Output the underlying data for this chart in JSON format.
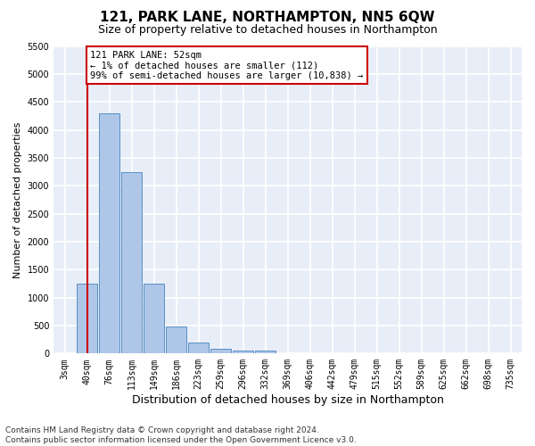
{
  "title": "121, PARK LANE, NORTHAMPTON, NN5 6QW",
  "subtitle": "Size of property relative to detached houses in Northampton",
  "xlabel": "Distribution of detached houses by size in Northampton",
  "ylabel": "Number of detached properties",
  "categories": [
    "3sqm",
    "40sqm",
    "76sqm",
    "113sqm",
    "149sqm",
    "186sqm",
    "223sqm",
    "259sqm",
    "296sqm",
    "332sqm",
    "369sqm",
    "406sqm",
    "442sqm",
    "479sqm",
    "515sqm",
    "552sqm",
    "589sqm",
    "625sqm",
    "662sqm",
    "698sqm",
    "735sqm"
  ],
  "values": [
    0,
    1250,
    4300,
    3250,
    1250,
    480,
    200,
    90,
    60,
    50,
    0,
    0,
    0,
    0,
    0,
    0,
    0,
    0,
    0,
    0,
    0
  ],
  "bar_color": "#aec6e8",
  "bar_edge_color": "#5a8fc2",
  "vline_x": 1,
  "vline_color": "#cc0000",
  "annotation_text": "121 PARK LANE: 52sqm\n← 1% of detached houses are smaller (112)\n99% of semi-detached houses are larger (10,838) →",
  "annotation_box_color": "white",
  "annotation_box_edge": "#cc0000",
  "ylim": [
    0,
    5500
  ],
  "yticks": [
    0,
    500,
    1000,
    1500,
    2000,
    2500,
    3000,
    3500,
    4000,
    4500,
    5000,
    5500
  ],
  "footer_line1": "Contains HM Land Registry data © Crown copyright and database right 2024.",
  "footer_line2": "Contains public sector information licensed under the Open Government Licence v3.0.",
  "title_fontsize": 11,
  "subtitle_fontsize": 9,
  "xlabel_fontsize": 9,
  "ylabel_fontsize": 8,
  "tick_fontsize": 7,
  "annot_fontsize": 7.5,
  "footer_fontsize": 6.5,
  "bg_color": "#e8eef8",
  "grid_color": "white"
}
